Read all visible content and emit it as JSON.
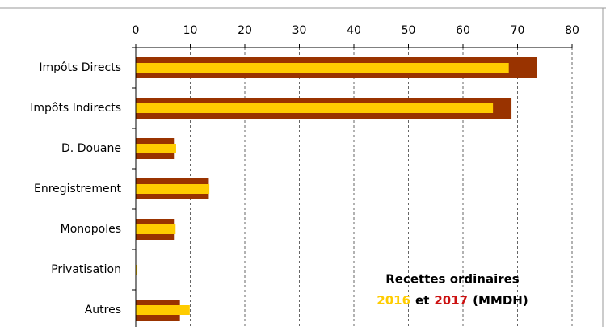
{
  "chart_data": {
    "type": "bar",
    "orientation": "horizontal",
    "title": "Recettes ordinaires",
    "legend_joiner": "et",
    "unit": "(MMDH)",
    "categories": [
      "Impôts Directs",
      "Impôts Indirects",
      "D. Douane",
      "Enregistrement",
      "Monopoles",
      "Privatisation",
      "Autres"
    ],
    "series": [
      {
        "name": "2017",
        "color": "#993300",
        "text_color": "#cc1111",
        "values": [
          73.6,
          68.9,
          7.0,
          13.4,
          7.0,
          0,
          8.1
        ]
      },
      {
        "name": "2016",
        "color": "#ffcc00",
        "text_color": "#ffcc00",
        "values": [
          68.4,
          65.5,
          7.4,
          13.5,
          7.3,
          0.3,
          9.9
        ]
      }
    ],
    "xlim": [
      0,
      80
    ],
    "xticks": [
      0,
      10,
      20,
      30,
      40,
      50,
      60,
      70,
      80
    ],
    "grid": true
  }
}
